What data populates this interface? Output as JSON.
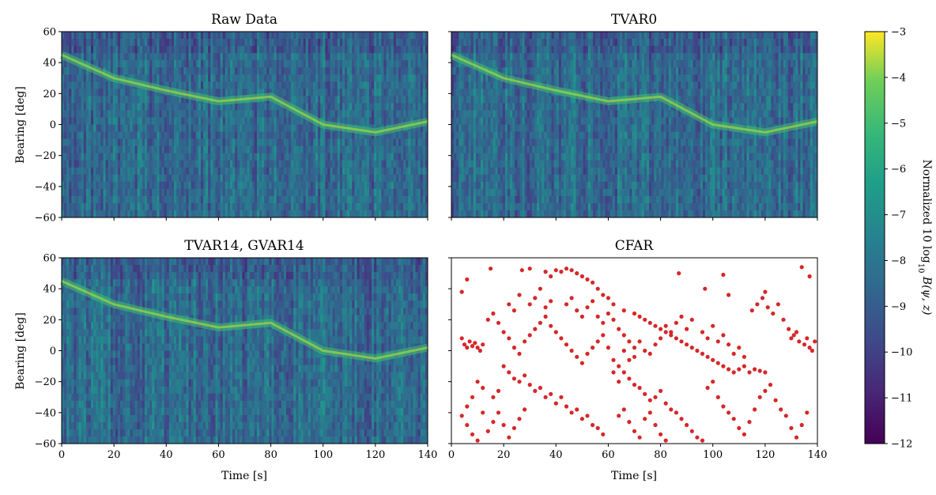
{
  "chart_data": [
    {
      "type": "heatmap",
      "title": "Raw Data",
      "xlabel": "",
      "ylabel": "Bearing [deg]",
      "xlim": [
        0,
        140
      ],
      "ylim": [
        -60,
        60
      ],
      "xticks": [
        "0",
        "20",
        "40",
        "60",
        "80",
        "100",
        "120",
        "140"
      ],
      "yticks": [
        "−60",
        "−40",
        "−20",
        "0",
        "20",
        "40",
        "60"
      ],
      "colormap": "viridis",
      "track": [
        [
          0,
          45
        ],
        [
          20,
          30
        ],
        [
          40,
          22
        ],
        [
          60,
          15
        ],
        [
          80,
          18
        ],
        [
          100,
          0
        ],
        [
          120,
          -5
        ],
        [
          140,
          2
        ]
      ]
    },
    {
      "type": "heatmap",
      "title": "TVAR0",
      "xlabel": "",
      "ylabel": "",
      "xlim": [
        0,
        140
      ],
      "ylim": [
        -60,
        60
      ],
      "xticks": [
        "0",
        "20",
        "40",
        "60",
        "80",
        "100",
        "120",
        "140"
      ],
      "yticks": [
        "−60",
        "−40",
        "−20",
        "0",
        "20",
        "40",
        "60"
      ],
      "colormap": "viridis",
      "track": [
        [
          0,
          45
        ],
        [
          20,
          30
        ],
        [
          40,
          22
        ],
        [
          60,
          15
        ],
        [
          80,
          18
        ],
        [
          100,
          0
        ],
        [
          120,
          -5
        ],
        [
          140,
          2
        ]
      ]
    },
    {
      "type": "heatmap",
      "title": "TVAR14, GVAR14",
      "xlabel": "Time [s]",
      "ylabel": "Bearing [deg]",
      "xlim": [
        0,
        140
      ],
      "ylim": [
        -60,
        60
      ],
      "xticks": [
        "0",
        "20",
        "40",
        "60",
        "80",
        "100",
        "120",
        "140"
      ],
      "yticks": [
        "−60",
        "−40",
        "−20",
        "0",
        "20",
        "40",
        "60"
      ],
      "colormap": "viridis",
      "track": [
        [
          0,
          45
        ],
        [
          20,
          30
        ],
        [
          40,
          22
        ],
        [
          60,
          15
        ],
        [
          80,
          18
        ],
        [
          100,
          0
        ],
        [
          120,
          -5
        ],
        [
          140,
          2
        ]
      ]
    },
    {
      "type": "scatter",
      "title": "CFAR",
      "xlabel": "Time [s]",
      "ylabel": "",
      "xlim": [
        0,
        140
      ],
      "ylim": [
        -60,
        60
      ],
      "xticks": [
        "0",
        "20",
        "40",
        "60",
        "80",
        "100",
        "120",
        "140"
      ],
      "yticks": [
        "−60",
        "−40",
        "−20",
        "0",
        "20",
        "40",
        "60"
      ],
      "marker_color": "#d62728",
      "points": [
        [
          4,
          8
        ],
        [
          5,
          4
        ],
        [
          6,
          2
        ],
        [
          7,
          6
        ],
        [
          8,
          3
        ],
        [
          9,
          5
        ],
        [
          10,
          2
        ],
        [
          11,
          0
        ],
        [
          12,
          4
        ],
        [
          6,
          46
        ],
        [
          4,
          38
        ],
        [
          15,
          53
        ],
        [
          27,
          52
        ],
        [
          30,
          53
        ],
        [
          36,
          51
        ],
        [
          38,
          48
        ],
        [
          40,
          52
        ],
        [
          42,
          51
        ],
        [
          44,
          53
        ],
        [
          46,
          52
        ],
        [
          48,
          50
        ],
        [
          50,
          48
        ],
        [
          52,
          46
        ],
        [
          54,
          44
        ],
        [
          56,
          40
        ],
        [
          58,
          36
        ],
        [
          60,
          34
        ],
        [
          62,
          30
        ],
        [
          66,
          26
        ],
        [
          70,
          24
        ],
        [
          72,
          22
        ],
        [
          74,
          20
        ],
        [
          76,
          18
        ],
        [
          78,
          16
        ],
        [
          80,
          14
        ],
        [
          82,
          12
        ],
        [
          84,
          10
        ],
        [
          86,
          8
        ],
        [
          88,
          6
        ],
        [
          90,
          4
        ],
        [
          92,
          2
        ],
        [
          94,
          0
        ],
        [
          96,
          -2
        ],
        [
          98,
          -4
        ],
        [
          100,
          -6
        ],
        [
          102,
          -8
        ],
        [
          104,
          -10
        ],
        [
          106,
          -12
        ],
        [
          108,
          -14
        ],
        [
          110,
          -12
        ],
        [
          112,
          -10
        ],
        [
          114,
          -14
        ],
        [
          116,
          -12
        ],
        [
          118,
          -13
        ],
        [
          120,
          -14
        ],
        [
          115,
          26
        ],
        [
          117,
          30
        ],
        [
          119,
          34
        ],
        [
          121,
          28
        ],
        [
          123,
          24
        ],
        [
          125,
          30
        ],
        [
          127,
          20
        ],
        [
          129,
          14
        ],
        [
          131,
          10
        ],
        [
          133,
          6
        ],
        [
          135,
          4
        ],
        [
          137,
          2
        ],
        [
          139,
          6
        ],
        [
          130,
          8
        ],
        [
          132,
          12
        ],
        [
          136,
          8
        ],
        [
          138,
          0
        ],
        [
          134,
          54
        ],
        [
          137,
          48
        ],
        [
          20,
          -10
        ],
        [
          22,
          -14
        ],
        [
          24,
          -18
        ],
        [
          26,
          -20
        ],
        [
          28,
          -16
        ],
        [
          30,
          -22
        ],
        [
          32,
          -26
        ],
        [
          34,
          -24
        ],
        [
          36,
          -30
        ],
        [
          38,
          -28
        ],
        [
          40,
          -34
        ],
        [
          42,
          -30
        ],
        [
          44,
          -36
        ],
        [
          46,
          -40
        ],
        [
          48,
          -38
        ],
        [
          50,
          -44
        ],
        [
          52,
          -42
        ],
        [
          54,
          -48
        ],
        [
          56,
          -50
        ],
        [
          58,
          -54
        ],
        [
          62,
          -6
        ],
        [
          64,
          -10
        ],
        [
          66,
          -14
        ],
        [
          68,
          -18
        ],
        [
          70,
          -22
        ],
        [
          72,
          -24
        ],
        [
          74,
          -28
        ],
        [
          76,
          -32
        ],
        [
          78,
          -30
        ],
        [
          80,
          -26
        ],
        [
          82,
          -34
        ],
        [
          84,
          -38
        ],
        [
          86,
          -40
        ],
        [
          88,
          -44
        ],
        [
          90,
          -48
        ],
        [
          92,
          -52
        ],
        [
          94,
          -56
        ],
        [
          96,
          -58
        ],
        [
          14,
          20
        ],
        [
          16,
          24
        ],
        [
          18,
          18
        ],
        [
          20,
          12
        ],
        [
          22,
          8
        ],
        [
          24,
          2
        ],
        [
          26,
          -2
        ],
        [
          28,
          6
        ],
        [
          30,
          10
        ],
        [
          32,
          14
        ],
        [
          34,
          18
        ],
        [
          36,
          22
        ],
        [
          38,
          16
        ],
        [
          40,
          12
        ],
        [
          42,
          8
        ],
        [
          44,
          4
        ],
        [
          46,
          0
        ],
        [
          48,
          -4
        ],
        [
          50,
          -8
        ],
        [
          52,
          -2
        ],
        [
          54,
          2
        ],
        [
          56,
          6
        ],
        [
          58,
          10
        ],
        [
          60,
          2
        ],
        [
          62,
          -14
        ],
        [
          64,
          -20
        ],
        [
          10,
          -20
        ],
        [
          12,
          -24
        ],
        [
          8,
          -30
        ],
        [
          6,
          -36
        ],
        [
          4,
          -42
        ],
        [
          6,
          -48
        ],
        [
          8,
          -54
        ],
        [
          10,
          -58
        ],
        [
          14,
          -52
        ],
        [
          16,
          -46
        ],
        [
          18,
          -40
        ],
        [
          20,
          -48
        ],
        [
          22,
          -56
        ],
        [
          24,
          -50
        ],
        [
          26,
          -44
        ],
        [
          28,
          -38
        ],
        [
          16,
          -30
        ],
        [
          18,
          -26
        ],
        [
          12,
          -40
        ],
        [
          64,
          -42
        ],
        [
          66,
          -38
        ],
        [
          68,
          -46
        ],
        [
          70,
          -52
        ],
        [
          72,
          -56
        ],
        [
          74,
          -44
        ],
        [
          76,
          -40
        ],
        [
          78,
          -48
        ],
        [
          80,
          -54
        ],
        [
          82,
          -58
        ],
        [
          98,
          -24
        ],
        [
          100,
          -20
        ],
        [
          102,
          -30
        ],
        [
          104,
          -36
        ],
        [
          106,
          -40
        ],
        [
          108,
          -44
        ],
        [
          110,
          -50
        ],
        [
          112,
          -54
        ],
        [
          114,
          -46
        ],
        [
          116,
          -38
        ],
        [
          118,
          -30
        ],
        [
          120,
          -26
        ],
        [
          122,
          -22
        ],
        [
          124,
          -32
        ],
        [
          126,
          -38
        ],
        [
          128,
          -42
        ],
        [
          130,
          -50
        ],
        [
          132,
          -56
        ],
        [
          134,
          -48
        ],
        [
          136,
          -40
        ],
        [
          96,
          12
        ],
        [
          98,
          8
        ],
        [
          100,
          16
        ],
        [
          102,
          6
        ],
        [
          104,
          10
        ],
        [
          106,
          4
        ],
        [
          108,
          -2
        ],
        [
          110,
          2
        ],
        [
          112,
          -4
        ],
        [
          92,
          20
        ],
        [
          90,
          14
        ],
        [
          88,
          22
        ],
        [
          86,
          18
        ],
        [
          84,
          12
        ],
        [
          82,
          16
        ],
        [
          80,
          8
        ],
        [
          78,
          4
        ],
        [
          76,
          -2
        ],
        [
          74,
          0
        ],
        [
          72,
          6
        ],
        [
          70,
          2
        ],
        [
          68,
          -6
        ],
        [
          66,
          0
        ],
        [
          30,
          30
        ],
        [
          32,
          34
        ],
        [
          34,
          40
        ],
        [
          36,
          28
        ],
        [
          38,
          32
        ],
        [
          26,
          36
        ],
        [
          24,
          26
        ],
        [
          22,
          30
        ],
        [
          44,
          30
        ],
        [
          46,
          34
        ],
        [
          48,
          26
        ],
        [
          50,
          22
        ],
        [
          52,
          28
        ],
        [
          54,
          32
        ],
        [
          56,
          22
        ],
        [
          58,
          18
        ],
        [
          60,
          24
        ],
        [
          62,
          20
        ],
        [
          64,
          14
        ],
        [
          66,
          10
        ],
        [
          68,
          6
        ],
        [
          70,
          -4
        ],
        [
          106,
          36
        ],
        [
          104,
          49
        ],
        [
          87,
          50
        ],
        [
          97,
          40
        ],
        [
          120,
          38
        ]
      ]
    }
  ],
  "colorbar": {
    "label": "Normalized 10 log",
    "label_sub": "10",
    "label_tail": " B(ψ, z)",
    "ticks": [
      "−3",
      "−4",
      "−5",
      "−6",
      "−7",
      "−8",
      "−9",
      "−10",
      "−11",
      "−12"
    ],
    "range": [
      -12,
      -3
    ],
    "colormap": "viridis"
  }
}
